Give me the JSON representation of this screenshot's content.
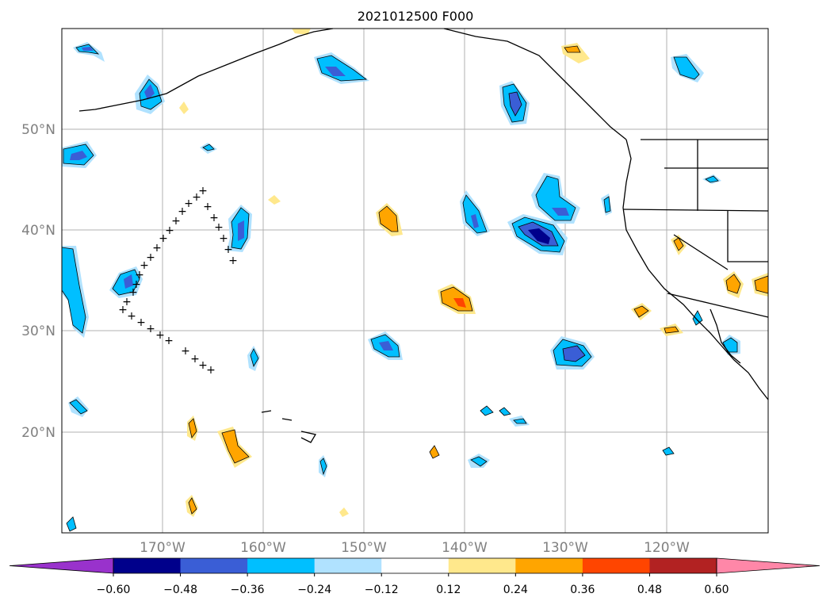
{
  "figure": {
    "title": "2021012500 F000"
  },
  "map": {
    "lat_labels": [
      "20°N",
      "30°N",
      "40°N",
      "50°N"
    ],
    "lon_labels": [
      "170°W",
      "160°W",
      "150°W",
      "140°W",
      "130°W",
      "120°W"
    ],
    "colors": {
      "land_lines": "#000000",
      "grid": "#b0b0b0",
      "background": "#ffffff"
    },
    "track_marker": "+"
  },
  "colorbar": {
    "tick_labels": [
      "−0.60",
      "−0.48",
      "−0.36",
      "−0.24",
      "−0.12",
      "0.12",
      "0.24",
      "0.36",
      "0.48",
      "0.60"
    ],
    "colors": [
      "#9932cc",
      "#00008b",
      "#3a5ed6",
      "#00bfff",
      "#b0e2ff",
      "#ffffff",
      "#ffe88c",
      "#ffa500",
      "#ff4500",
      "#b22222",
      "#ff87a8"
    ]
  }
}
